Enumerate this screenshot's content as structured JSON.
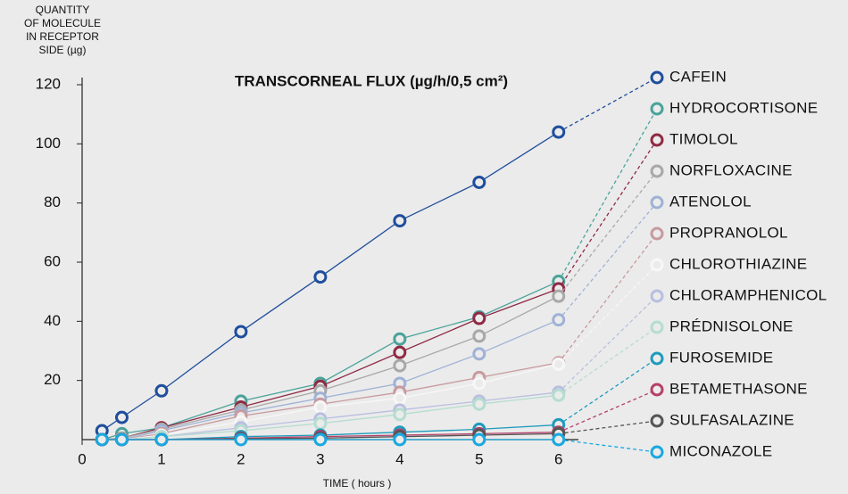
{
  "chart_data": {
    "type": "line",
    "title": "TRANSCORNEAL FLUX (µg/h/0,5 cm²)",
    "y_label": [
      "QUANTITY",
      "OF MOLECULE",
      "IN RECEPTOR",
      "SIDE (µg)"
    ],
    "x_label": "TIME ( hours )",
    "x": [
      0.25,
      0.5,
      1,
      2,
      3,
      4,
      5,
      6
    ],
    "xlim": [
      0,
      6.25
    ],
    "xticks": [
      0,
      1,
      2,
      3,
      4,
      5,
      6
    ],
    "ylim": [
      0,
      120
    ],
    "yticks": [
      20,
      40,
      60,
      80,
      100,
      120
    ],
    "series": [
      {
        "name": "CAFEIN",
        "color": "#1f4e9c",
        "values": [
          3,
          7.5,
          16.5,
          36.5,
          55,
          74,
          87,
          104
        ]
      },
      {
        "name": "HYDROCORTISONE",
        "color": "#4aa39a",
        "values": [
          0,
          2,
          4,
          13,
          19,
          34,
          41.5,
          53.5
        ]
      },
      {
        "name": "TIMOLOL",
        "color": "#8f2a45",
        "values": [
          0,
          0.5,
          4,
          11,
          18,
          29.5,
          41,
          51
        ]
      },
      {
        "name": "NORFLOXACINE",
        "color": "#a8a8a8",
        "values": [
          0,
          0.5,
          3.5,
          10,
          16.5,
          25,
          35,
          48.5
        ]
      },
      {
        "name": "ATENOLOL",
        "color": "#9fb2d6",
        "values": [
          0,
          0,
          3,
          9,
          14,
          19,
          29,
          40.5
        ]
      },
      {
        "name": "PROPRANOLOL",
        "color": "#c89a9e",
        "values": [
          0,
          0,
          2,
          8,
          12,
          16,
          21,
          26
        ]
      },
      {
        "name": "CHLOROTHIAZINE",
        "color": "#f7f7f7",
        "values": [
          0,
          0,
          1.5,
          6,
          11,
          14,
          19,
          25.5
        ]
      },
      {
        "name": "CHLORAMPHENICOL",
        "color": "#b8bfe0",
        "values": [
          0,
          0,
          1,
          4,
          7,
          10,
          13,
          16
        ]
      },
      {
        "name": "PRÉDNISOLONE",
        "color": "#b5ddd0",
        "values": [
          0,
          0,
          1,
          3,
          5.5,
          8.5,
          12,
          15
        ]
      },
      {
        "name": "FUROSEMIDE",
        "color": "#1e9bbd",
        "values": [
          0,
          0,
          0,
          1,
          1.5,
          2.5,
          3.5,
          5
        ]
      },
      {
        "name": "BETAMETHASONE",
        "color": "#b5406a",
        "values": [
          0,
          0,
          0,
          0.5,
          1,
          1.5,
          2,
          2.5
        ]
      },
      {
        "name": "SULFASALAZINE",
        "color": "#555555",
        "values": [
          0,
          0,
          0,
          0.3,
          0.5,
          1,
          1.5,
          2
        ]
      },
      {
        "name": "MICONAZOLE",
        "color": "#1aa8e0",
        "values": [
          0,
          0,
          0,
          0,
          0,
          0,
          0,
          0
        ]
      }
    ]
  }
}
